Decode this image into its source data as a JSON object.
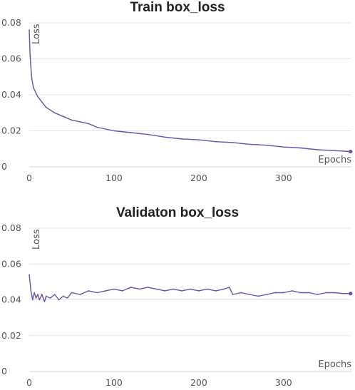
{
  "chart_data": [
    {
      "type": "line",
      "title": "Train box_loss",
      "xlabel": "Epochs",
      "ylabel": "Loss",
      "xlim": [
        0,
        380
      ],
      "ylim": [
        0,
        0.08
      ],
      "x_ticks": [
        0,
        100,
        200,
        300
      ],
      "y_ticks": [
        "0",
        "0.02",
        "0.04",
        "0.06",
        "0.08"
      ],
      "grid": "horizontal",
      "color": "#6b4fa8",
      "series": [
        {
          "x": [
            0,
            1,
            2,
            3,
            5,
            8,
            10,
            15,
            20,
            30,
            40,
            50,
            60,
            70,
            80,
            100,
            120,
            140,
            160,
            180,
            200,
            220,
            240,
            260,
            280,
            300,
            320,
            340,
            360,
            379
          ],
          "values": [
            0.076,
            0.062,
            0.055,
            0.049,
            0.044,
            0.041,
            0.039,
            0.036,
            0.033,
            0.03,
            0.028,
            0.026,
            0.025,
            0.024,
            0.022,
            0.02,
            0.019,
            0.018,
            0.0165,
            0.0155,
            0.015,
            0.014,
            0.0135,
            0.0125,
            0.012,
            0.011,
            0.0105,
            0.0095,
            0.009,
            0.0085
          ]
        }
      ]
    },
    {
      "type": "line",
      "title": "Validaton box_loss",
      "xlabel": "Epochs",
      "ylabel": "Loss",
      "xlim": [
        0,
        380
      ],
      "ylim": [
        0,
        0.08
      ],
      "x_ticks": [
        0,
        100,
        200,
        300
      ],
      "y_ticks": [
        "0",
        "0.02",
        "0.04",
        "0.06",
        "0.08"
      ],
      "grid": "horizontal",
      "color": "#6b4fa8",
      "series": [
        {
          "x": [
            0,
            2,
            4,
            6,
            8,
            10,
            12,
            15,
            18,
            20,
            25,
            30,
            35,
            40,
            45,
            50,
            60,
            70,
            80,
            90,
            100,
            110,
            120,
            130,
            140,
            150,
            160,
            170,
            180,
            190,
            200,
            210,
            220,
            230,
            236,
            240,
            250,
            260,
            270,
            280,
            290,
            300,
            310,
            320,
            330,
            340,
            350,
            360,
            370,
            379
          ],
          "values": [
            0.054,
            0.045,
            0.04,
            0.044,
            0.041,
            0.043,
            0.04,
            0.043,
            0.039,
            0.042,
            0.041,
            0.043,
            0.04,
            0.042,
            0.041,
            0.044,
            0.043,
            0.045,
            0.044,
            0.045,
            0.046,
            0.045,
            0.047,
            0.046,
            0.047,
            0.046,
            0.045,
            0.046,
            0.045,
            0.046,
            0.045,
            0.046,
            0.045,
            0.046,
            0.047,
            0.043,
            0.044,
            0.043,
            0.042,
            0.043,
            0.044,
            0.044,
            0.045,
            0.044,
            0.044,
            0.043,
            0.044,
            0.044,
            0.0435,
            0.0435
          ]
        }
      ]
    }
  ]
}
